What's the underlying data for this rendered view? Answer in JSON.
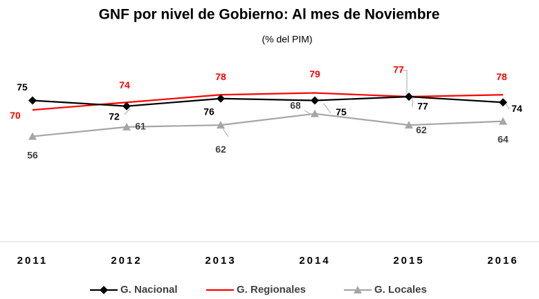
{
  "chart_data": {
    "type": "line",
    "title": "GNF por nivel de Gobierno: Al mes de Noviembre",
    "subtitle": "(% del PIM)",
    "categories": [
      "2011",
      "2012",
      "2013",
      "2014",
      "2015",
      "2016"
    ],
    "series": [
      {
        "name": "G. Nacional",
        "color": "#000000",
        "marker": "diamond",
        "values": [
          75,
          72,
          76,
          75,
          77,
          74
        ]
      },
      {
        "name": "G. Regionales",
        "color": "#ff0000",
        "marker": "none",
        "values": [
          70,
          74,
          78,
          79,
          77,
          78
        ]
      },
      {
        "name": "G. Locales",
        "color": "#a6a6a6",
        "marker": "triangle",
        "values": [
          56,
          61,
          62,
          68,
          62,
          64
        ]
      }
    ],
    "legend": "bottom"
  }
}
